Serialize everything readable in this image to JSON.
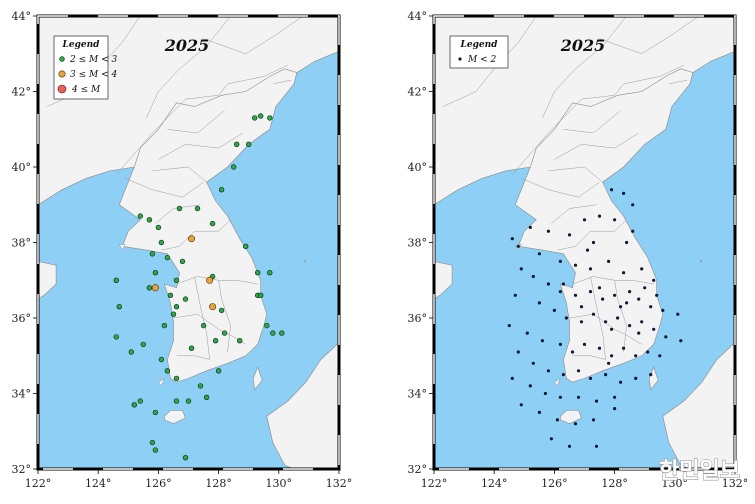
{
  "maps": [
    {
      "title": "2025",
      "legend": {
        "title": "Legend",
        "items": [
          {
            "label": "2 ≤ M < 3",
            "color": "#2ca84a"
          },
          {
            "label": "3 ≤ M < 4",
            "color": "#e8a33a"
          },
          {
            "label": "4 ≤ M",
            "color": "#e8605a"
          }
        ]
      },
      "x_ticks": [
        "122°",
        "124°",
        "126°",
        "128°",
        "130°",
        "132°"
      ],
      "y_ticks": [
        "32°",
        "34°",
        "36°",
        "38°",
        "40°",
        "42°",
        "44°"
      ]
    },
    {
      "title": "2025",
      "legend": {
        "title": "Legend",
        "items": [
          {
            "label": "M < 2",
            "color": "#111a33"
          }
        ]
      },
      "x_ticks": [
        "122°",
        "124°",
        "126°",
        "128°",
        "130°",
        "132°"
      ],
      "y_ticks": [
        "32°",
        "34°",
        "36°",
        "38°",
        "40°",
        "42°",
        "44°"
      ]
    }
  ],
  "watermark": "한민일보",
  "colors": {
    "sea": "#8ed0f5",
    "land": "#f3f3f3",
    "border": "#8a8a8a",
    "m2to3": "#2ca84a",
    "m3to4": "#e8a33a",
    "m4plus": "#e8605a",
    "mlt2": "#111a33"
  },
  "chart_data": [
    {
      "type": "scatter",
      "title": "2025",
      "xlim": [
        122,
        132
      ],
      "ylim": [
        32,
        44
      ],
      "series": [
        {
          "name": "2 ≤ M < 3",
          "points": [
            [
              129.2,
              41.3
            ],
            [
              129.4,
              41.35
            ],
            [
              129.7,
              41.3
            ],
            [
              128.6,
              40.6
            ],
            [
              129.0,
              40.6
            ],
            [
              128.5,
              40.0
            ],
            [
              128.1,
              39.4
            ],
            [
              126.7,
              38.9
            ],
            [
              127.3,
              38.9
            ],
            [
              127.8,
              38.5
            ],
            [
              126.0,
              38.4
            ],
            [
              125.4,
              38.7
            ],
            [
              125.7,
              38.6
            ],
            [
              126.1,
              38.0
            ],
            [
              128.9,
              37.9
            ],
            [
              125.8,
              37.7
            ],
            [
              126.3,
              37.6
            ],
            [
              126.8,
              37.5
            ],
            [
              129.3,
              37.2
            ],
            [
              129.7,
              37.2
            ],
            [
              127.8,
              37.1
            ],
            [
              125.9,
              37.2
            ],
            [
              126.6,
              37.0
            ],
            [
              124.6,
              37.0
            ],
            [
              125.7,
              36.8
            ],
            [
              126.4,
              36.6
            ],
            [
              126.6,
              36.3
            ],
            [
              126.9,
              36.5
            ],
            [
              126.5,
              36.1
            ],
            [
              128.1,
              36.2
            ],
            [
              129.3,
              36.6
            ],
            [
              129.4,
              36.6
            ],
            [
              124.7,
              36.3
            ],
            [
              126.2,
              35.8
            ],
            [
              127.5,
              35.8
            ],
            [
              128.2,
              35.6
            ],
            [
              129.8,
              35.6
            ],
            [
              130.1,
              35.6
            ],
            [
              129.6,
              35.8
            ],
            [
              128.7,
              35.4
            ],
            [
              127.9,
              35.4
            ],
            [
              127.1,
              35.2
            ],
            [
              124.6,
              35.5
            ],
            [
              125.1,
              35.1
            ],
            [
              125.5,
              35.3
            ],
            [
              126.1,
              34.9
            ],
            [
              126.3,
              34.6
            ],
            [
              126.6,
              34.4
            ],
            [
              127.4,
              34.2
            ],
            [
              128.0,
              34.6
            ],
            [
              125.2,
              33.7
            ],
            [
              125.4,
              33.8
            ],
            [
              125.9,
              33.5
            ],
            [
              126.6,
              33.8
            ],
            [
              127.0,
              33.8
            ],
            [
              127.6,
              33.9
            ],
            [
              125.8,
              32.7
            ],
            [
              126.9,
              32.3
            ],
            [
              125.9,
              32.5
            ]
          ]
        },
        {
          "name": "3 ≤ M < 4",
          "points": [
            [
              127.1,
              38.1
            ],
            [
              125.9,
              36.8
            ],
            [
              127.7,
              37.0
            ],
            [
              127.8,
              36.3
            ]
          ]
        },
        {
          "name": "4 ≤ M",
          "points": []
        }
      ]
    },
    {
      "type": "scatter",
      "title": "2025",
      "xlim": [
        122,
        132
      ],
      "ylim": [
        32,
        44
      ],
      "series": [
        {
          "name": "M < 2",
          "points": [
            [
              127.9,
              39.4
            ],
            [
              128.3,
              39.3
            ],
            [
              128.6,
              39.0
            ],
            [
              127.0,
              38.6
            ],
            [
              127.5,
              38.7
            ],
            [
              128.0,
              38.6
            ],
            [
              128.6,
              38.3
            ],
            [
              125.2,
              38.4
            ],
            [
              125.8,
              38.3
            ],
            [
              126.5,
              38.2
            ],
            [
              127.3,
              38.0
            ],
            [
              124.6,
              38.1
            ],
            [
              124.8,
              37.9
            ],
            [
              125.5,
              37.7
            ],
            [
              126.2,
              37.5
            ],
            [
              126.7,
              37.4
            ],
            [
              127.2,
              37.3
            ],
            [
              127.8,
              37.5
            ],
            [
              128.3,
              37.2
            ],
            [
              128.9,
              37.3
            ],
            [
              129.3,
              37.0
            ],
            [
              124.9,
              37.3
            ],
            [
              125.3,
              37.1
            ],
            [
              125.8,
              36.9
            ],
            [
              126.2,
              36.7
            ],
            [
              126.7,
              36.6
            ],
            [
              127.2,
              36.7
            ],
            [
              127.6,
              36.5
            ],
            [
              128.0,
              36.6
            ],
            [
              128.4,
              36.4
            ],
            [
              128.8,
              36.5
            ],
            [
              129.2,
              36.3
            ],
            [
              129.6,
              36.2
            ],
            [
              130.1,
              36.1
            ],
            [
              124.7,
              36.6
            ],
            [
              125.5,
              36.4
            ],
            [
              126.0,
              36.2
            ],
            [
              126.4,
              36.0
            ],
            [
              126.9,
              35.9
            ],
            [
              127.3,
              36.1
            ],
            [
              127.7,
              35.9
            ],
            [
              128.1,
              36.0
            ],
            [
              128.5,
              35.8
            ],
            [
              128.9,
              35.9
            ],
            [
              129.3,
              35.7
            ],
            [
              129.7,
              35.5
            ],
            [
              130.2,
              35.4
            ],
            [
              124.5,
              35.8
            ],
            [
              125.1,
              35.6
            ],
            [
              125.6,
              35.4
            ],
            [
              126.2,
              35.3
            ],
            [
              126.6,
              35.1
            ],
            [
              127.0,
              35.3
            ],
            [
              127.5,
              35.2
            ],
            [
              127.9,
              35.0
            ],
            [
              128.3,
              35.2
            ],
            [
              128.7,
              35.0
            ],
            [
              129.1,
              35.1
            ],
            [
              129.5,
              35.0
            ],
            [
              124.8,
              35.1
            ],
            [
              125.3,
              34.8
            ],
            [
              125.8,
              34.6
            ],
            [
              126.3,
              34.5
            ],
            [
              126.8,
              34.6
            ],
            [
              127.2,
              34.4
            ],
            [
              127.7,
              34.5
            ],
            [
              128.2,
              34.3
            ],
            [
              128.7,
              34.4
            ],
            [
              129.2,
              34.5
            ],
            [
              124.6,
              34.4
            ],
            [
              125.2,
              34.2
            ],
            [
              125.7,
              34.0
            ],
            [
              126.2,
              33.9
            ],
            [
              126.8,
              33.9
            ],
            [
              127.4,
              33.8
            ],
            [
              128.0,
              33.9
            ],
            [
              124.9,
              33.7
            ],
            [
              125.5,
              33.5
            ],
            [
              126.1,
              33.3
            ],
            [
              126.7,
              33.2
            ],
            [
              127.3,
              33.3
            ],
            [
              128.0,
              33.6
            ],
            [
              125.9,
              32.8
            ],
            [
              126.5,
              32.6
            ],
            [
              127.4,
              32.6
            ],
            [
              127.9,
              35.7
            ],
            [
              128.2,
              36.3
            ],
            [
              128.5,
              36.7
            ],
            [
              127.5,
              36.8
            ],
            [
              126.9,
              36.3
            ],
            [
              129.0,
              36.8
            ],
            [
              128.8,
              35.6
            ],
            [
              129.4,
              36.6
            ],
            [
              127.1,
              37.8
            ],
            [
              128.4,
              38.0
            ],
            [
              126.3,
              36.9
            ],
            [
              127.8,
              34.8
            ]
          ]
        }
      ]
    }
  ]
}
